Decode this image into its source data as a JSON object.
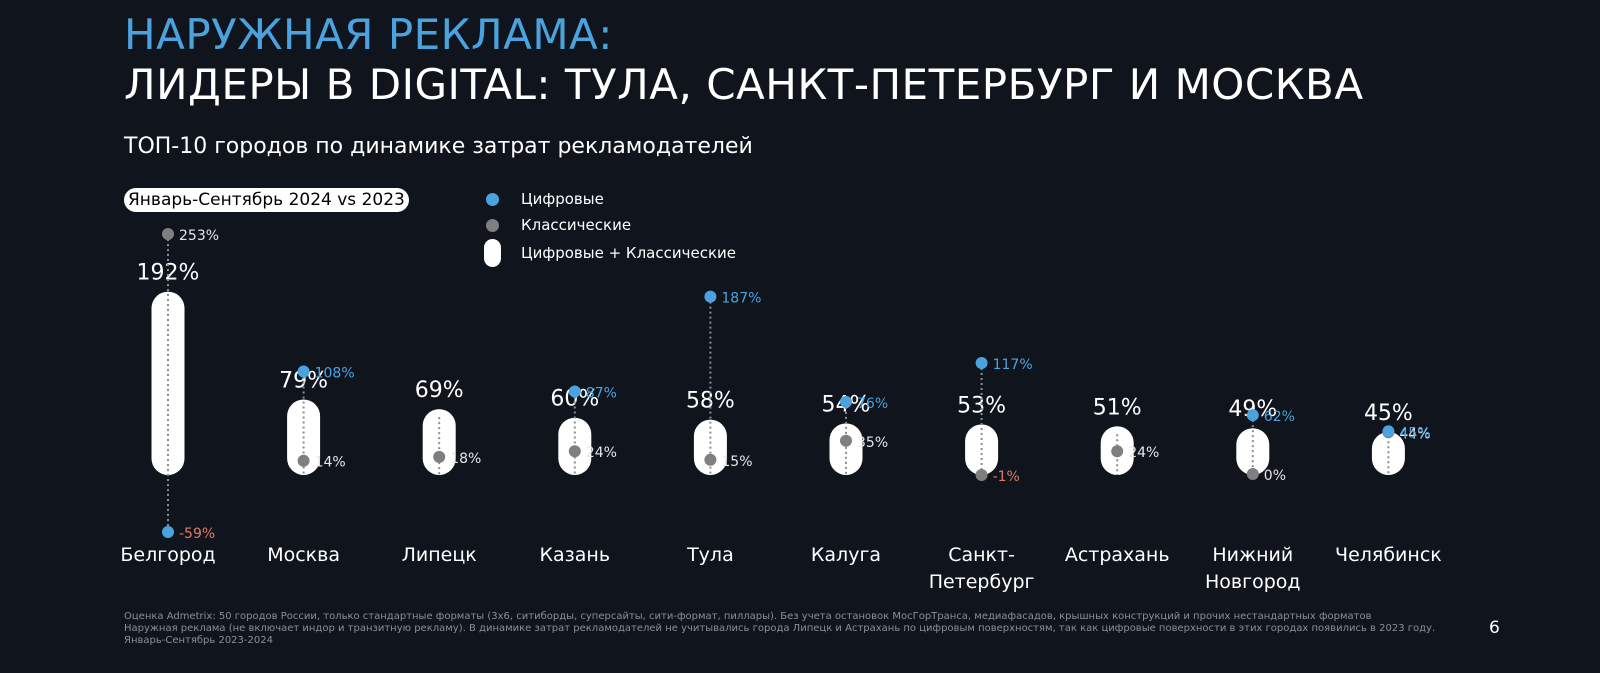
{
  "header": {
    "title_line1": "НАРУЖНАЯ РЕКЛАМА:",
    "title_line2": "ЛИДЕРЫ В DIGITAL: ТУЛА, САНКТ-ПЕТЕРБУРГ И МОСКВА",
    "subtitle": "ТОП-10 городов по динамике затрат рекламодателей",
    "period": "Январь-Сентябрь 2024 vs 2023"
  },
  "legend": {
    "digital": "Цифровые",
    "classic": "Классические",
    "total": "Цифровые + Классические"
  },
  "colors": {
    "background": "#0f141d",
    "digital": "#4aa3df",
    "classic": "#7f7f7f",
    "negative": "#e07a63",
    "total": "#ffffff"
  },
  "chart_data": {
    "type": "scatter",
    "y_unit": "%",
    "categories": [
      "Белгород",
      "Москва",
      "Липецк",
      "Казань",
      "Тула",
      "Калуга",
      "Санкт-Петербург",
      "Астрахань",
      "Нижний Новгород",
      "Челябинск"
    ],
    "category_labels": [
      [
        "Белгород"
      ],
      [
        "Москва"
      ],
      [
        "Липецк"
      ],
      [
        "Казань"
      ],
      [
        "Тула"
      ],
      [
        "Калуга"
      ],
      [
        "Санкт-",
        "Петербург"
      ],
      [
        "Астрахань"
      ],
      [
        "Нижний",
        "Новгород"
      ],
      [
        "Челябинск"
      ]
    ],
    "series": [
      {
        "name": "Цифровые + Классические",
        "values": [
          192,
          79,
          69,
          60,
          58,
          54,
          53,
          51,
          49,
          45
        ]
      },
      {
        "name": "Цифровые",
        "values": [
          -59,
          108,
          null,
          87,
          187,
          76,
          117,
          null,
          62,
          45
        ]
      },
      {
        "name": "Классические",
        "values": [
          253,
          14,
          18,
          24,
          15,
          35,
          -1,
          24,
          0,
          44
        ]
      }
    ]
  },
  "footnote": {
    "line1": "Оценка Admetrix: 50 городов России, только стандартные форматы (3х6, ситиборды, суперсайты, сити-формат, пиллары). Без учета остановок МосГорТранса, медиафасадов, крышных конструкций и прочих нестандартных форматов",
    "line2": "Наружная реклама (не включает индор и транзитную рекламу). В динамике затрат рекламодателей не учитывались города Липецк и Астрахань по цифровым поверхностям, так как цифровые поверхности в этих городах появились в 2023 году.",
    "line3": "Январь-Сентябрь 2023-2024"
  },
  "page_number": "6"
}
